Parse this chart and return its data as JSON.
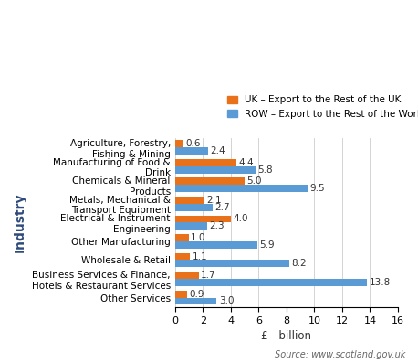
{
  "categories": [
    "Agriculture, Forestry,\nFishing & Mining",
    "Manufacturing of Food &\nDrink",
    "Chemicals & Mineral\nProducts",
    "Metals, Mechanical &\nTransport Equipment",
    "Electrical & Instrument\nEngineering",
    "Other Manufacturing",
    "Wholesale & Retail",
    "Business Services & Finance,\nHotels & Restaurant Services",
    "Other Services"
  ],
  "uk_values": [
    0.6,
    4.4,
    5.0,
    2.1,
    4.0,
    1.0,
    1.1,
    1.7,
    0.9
  ],
  "row_values": [
    2.4,
    5.8,
    9.5,
    2.7,
    2.3,
    5.9,
    8.2,
    13.8,
    3.0
  ],
  "uk_color": "#E8711A",
  "row_color": "#5B9BD5",
  "uk_label": "UK – Export to the Rest of the UK",
  "row_label": "ROW – Export to the Rest of the World",
  "xlabel": "£ - billion",
  "ylabel": "Industry",
  "xlim": [
    0,
    16
  ],
  "xticks": [
    0,
    2,
    4,
    6,
    8,
    10,
    12,
    14,
    16
  ],
  "source": "Source: www.scotland.gov.uk",
  "bar_height": 0.38
}
